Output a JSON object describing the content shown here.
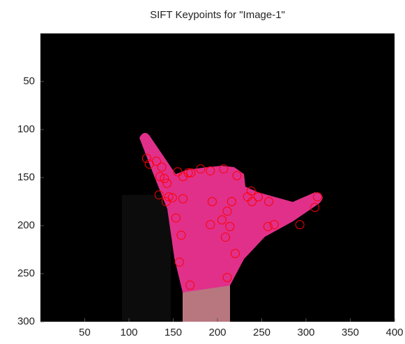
{
  "chart_data": {
    "type": "scatter",
    "title": "SIFT Keypoints for \"Image-1\"",
    "xlim": [
      0,
      400
    ],
    "ylim": [
      0,
      300
    ],
    "y_reversed": true,
    "xticks": [
      50,
      100,
      150,
      200,
      250,
      300,
      350,
      400
    ],
    "yticks": [
      50,
      100,
      150,
      200,
      250,
      300
    ],
    "color": "#ff0000",
    "series": [
      {
        "x": [
          120,
          123,
          131,
          137,
          135,
          140,
          143,
          134,
          145,
          142,
          149,
          155,
          161,
          167,
          170,
          181,
          192,
          207,
          222,
          194,
          205,
          214,
          211,
          216,
          234,
          239,
          246,
          258,
          238,
          153,
          159,
          157,
          169,
          192,
          209,
          220,
          211,
          257,
          264,
          293,
          310,
          313,
          161
        ],
        "values": [
          130,
          136,
          133,
          139,
          149,
          151,
          156,
          168,
          170,
          175,
          171,
          144,
          149,
          145,
          145,
          141,
          143,
          141,
          148,
          175,
          194,
          201,
          185,
          175,
          170,
          175,
          170,
          175,
          164,
          192,
          210,
          238,
          262,
          199,
          212,
          229,
          254,
          201,
          199,
          199,
          181,
          170,
          172
        ]
      }
    ]
  }
}
